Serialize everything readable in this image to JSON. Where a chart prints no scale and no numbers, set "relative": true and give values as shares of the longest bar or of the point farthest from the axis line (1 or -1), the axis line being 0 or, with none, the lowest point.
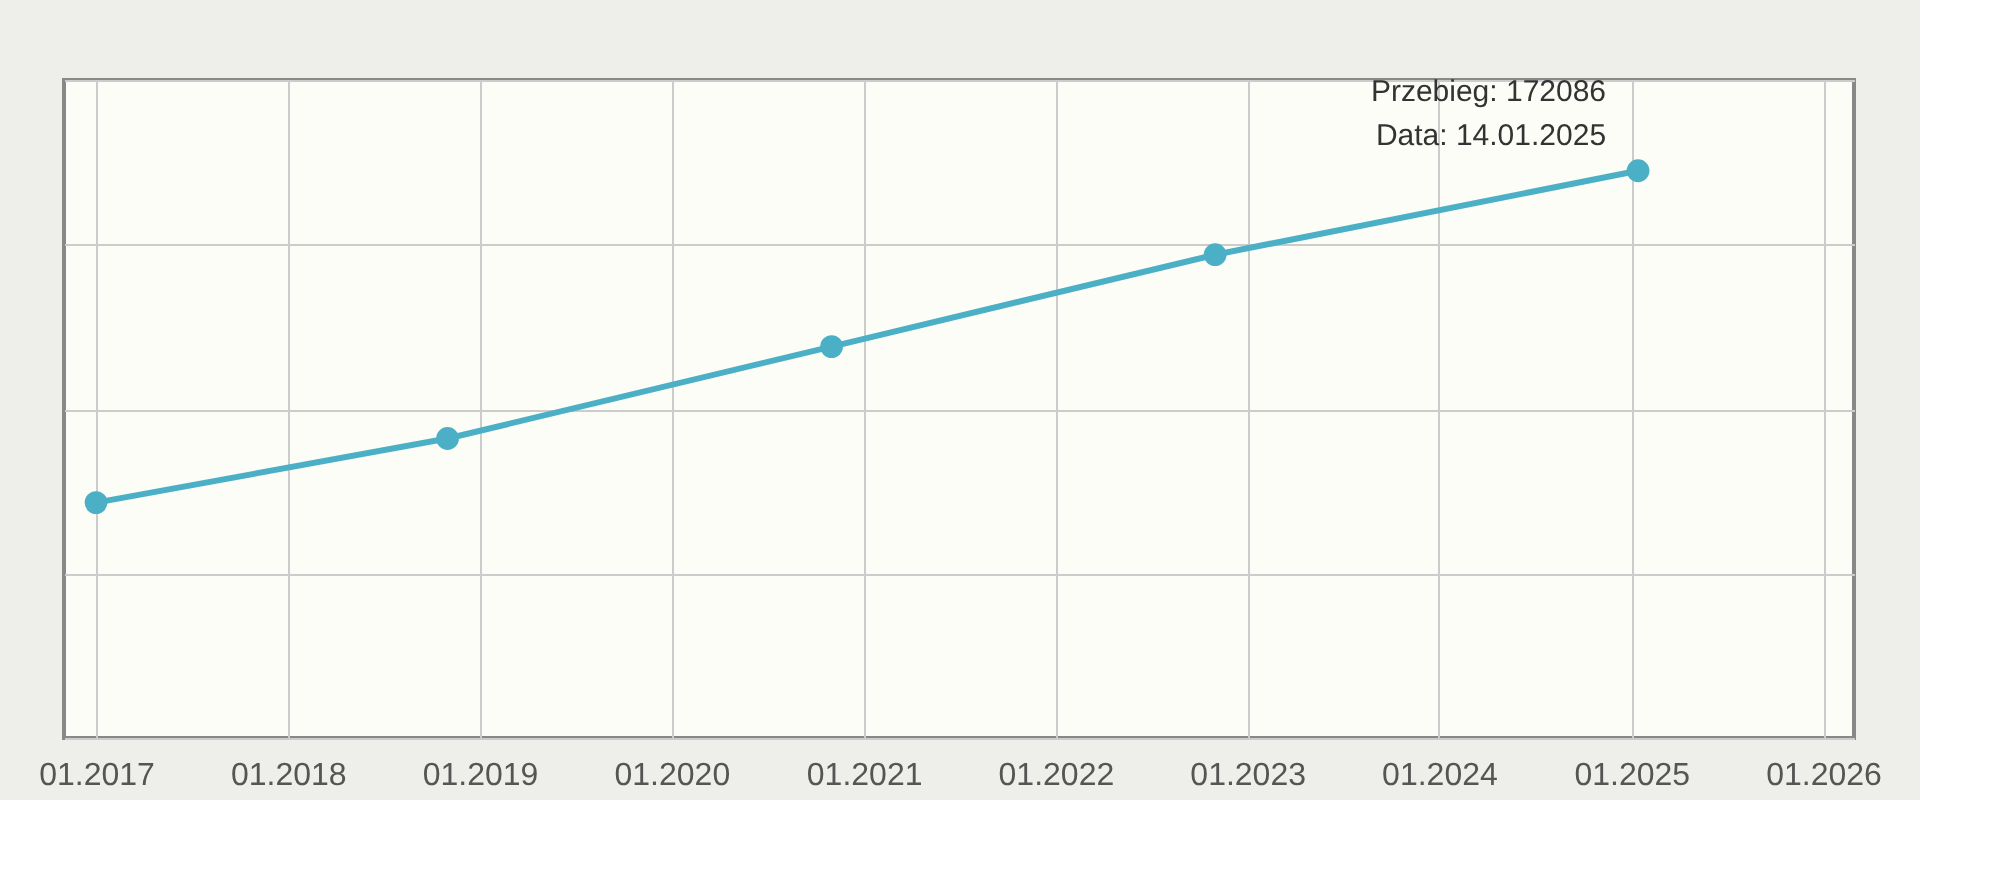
{
  "chart_data": {
    "type": "line",
    "relative": true,
    "x": [
      "2017-01",
      "2018-11",
      "2020-11",
      "2022-11",
      "2025-01-14"
    ],
    "series": [
      {
        "color": "#4bb0c6",
        "values": [
          0.415,
          0.528,
          0.69,
          0.852,
          1
        ]
      }
    ],
    "xlim": [
      "2016-11",
      "2026-03"
    ],
    "xticks": [
      {
        "value": "2017-01",
        "label": "01.2017"
      },
      {
        "value": "2018-01",
        "label": "01.2018"
      },
      {
        "value": "2019-01",
        "label": "01.2019"
      },
      {
        "value": "2020-01",
        "label": "01.2020"
      },
      {
        "value": "2021-01",
        "label": "01.2021"
      },
      {
        "value": "2022-01",
        "label": "01.2022"
      },
      {
        "value": "2023-01",
        "label": "01.2023"
      },
      {
        "value": "2024-01",
        "label": "01.2024"
      },
      {
        "value": "2025-01",
        "label": "01.2025"
      },
      {
        "value": "2026-01",
        "label": "01.2026"
      }
    ],
    "annotations": [
      {
        "text": "Przebieg: 172086",
        "x": "2025-01-14",
        "y": 1
      },
      {
        "text": "Data: 14.01.2025",
        "x": "2025-01-14",
        "y": 1
      }
    ],
    "grid": true,
    "marker": "circle",
    "line_style": "solid",
    "legend": false
  }
}
